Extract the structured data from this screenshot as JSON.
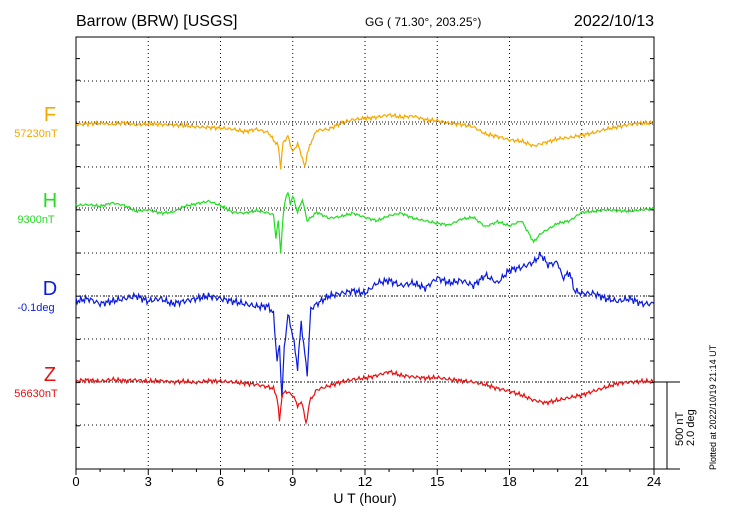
{
  "header": {
    "station": "Barrow (BRW)  [USGS]",
    "coords": "GG ( 71.30°, 203.25°)",
    "date": "2022/10/13"
  },
  "footer": {
    "plotted_at": "Plotted at 2022/10/19 21:14 UT"
  },
  "scale_bar": {
    "line1": "500 nT",
    "line2": "2.0 deg"
  },
  "chart_data": {
    "type": "line",
    "xlabel": "U T (hour)",
    "ylabel": "",
    "xlim": [
      0,
      24
    ],
    "xticks": [
      "0",
      "3",
      "6",
      "9",
      "12",
      "15",
      "18",
      "21",
      "24"
    ],
    "grid": true,
    "series": [
      {
        "name": "F",
        "baseline_label": "57230nT",
        "color": "#f5a800",
        "x": [
          0,
          0.5,
          1,
          1.5,
          2,
          2.5,
          3,
          3.5,
          4,
          4.5,
          5,
          5.5,
          6,
          6.5,
          7,
          7.5,
          8,
          8.2,
          8.4,
          8.5,
          8.6,
          8.8,
          9,
          9.2,
          9.4,
          9.5,
          9.6,
          9.8,
          10,
          10.5,
          11,
          11.5,
          12,
          12.5,
          13,
          13.5,
          14,
          14.5,
          15,
          15.5,
          16,
          16.5,
          17,
          17.5,
          18,
          18.5,
          19,
          19.5,
          20,
          20.5,
          21,
          21.5,
          22,
          22.5,
          23,
          23.5,
          24
        ],
        "y": [
          -20,
          -15,
          -10,
          -20,
          -5,
          -25,
          -15,
          -20,
          -25,
          -30,
          -40,
          -45,
          -50,
          -60,
          -80,
          -60,
          -90,
          -150,
          -200,
          -380,
          -170,
          -120,
          -250,
          -180,
          -300,
          -380,
          -260,
          -150,
          -70,
          -60,
          -10,
          20,
          30,
          40,
          60,
          40,
          50,
          20,
          10,
          -10,
          -20,
          -40,
          -100,
          -120,
          -150,
          -160,
          -200,
          -170,
          -140,
          -130,
          -110,
          -90,
          -60,
          -40,
          -20,
          -10,
          -10
        ]
      },
      {
        "name": "H",
        "baseline_label": "9300nT",
        "color": "#22dd22",
        "x": [
          0,
          0.5,
          1,
          1.5,
          2,
          2.5,
          3,
          3.5,
          4,
          4.5,
          5,
          5.5,
          6,
          6.5,
          7,
          7.5,
          8,
          8.2,
          8.3,
          8.4,
          8.5,
          8.6,
          8.7,
          8.8,
          8.9,
          9,
          9.2,
          9.4,
          9.6,
          9.8,
          10,
          10.5,
          11,
          11.5,
          12,
          12.5,
          13,
          13.5,
          14,
          14.5,
          15,
          15.5,
          16,
          16.5,
          17,
          17.5,
          18,
          18.5,
          19,
          19.3,
          19.6,
          20,
          20.5,
          21,
          21.5,
          22,
          22.5,
          23,
          23.5,
          24
        ],
        "y": [
          30,
          40,
          20,
          60,
          30,
          -40,
          -20,
          -60,
          -50,
          20,
          50,
          80,
          30,
          -50,
          -60,
          -30,
          -60,
          -80,
          -350,
          -150,
          -520,
          -100,
          120,
          180,
          50,
          140,
          -50,
          100,
          -150,
          -100,
          -50,
          -120,
          -100,
          -60,
          -110,
          -150,
          -90,
          -60,
          -120,
          -150,
          -180,
          -200,
          -130,
          -110,
          -220,
          -160,
          -210,
          -150,
          -400,
          -300,
          -250,
          -180,
          -150,
          -50,
          -40,
          -20,
          -30,
          -40,
          -20,
          -10
        ]
      },
      {
        "name": "D",
        "baseline_label": "-0.1deg",
        "color": "#0a1adf",
        "x": [
          0,
          0.5,
          1,
          1.5,
          2,
          2.5,
          3,
          3.5,
          4,
          4.5,
          5,
          5.5,
          6,
          6.5,
          7,
          7.5,
          8,
          8.2,
          8.35,
          8.45,
          8.55,
          8.65,
          8.8,
          9,
          9.2,
          9.35,
          9.5,
          9.6,
          9.75,
          10,
          10.5,
          11,
          11.5,
          12,
          12.5,
          13,
          13.5,
          14,
          14.5,
          15,
          15.5,
          16,
          16.5,
          17,
          17.5,
          18,
          18.5,
          19,
          19.3,
          19.6,
          20,
          20.2,
          20.5,
          20.7,
          21,
          21.5,
          22,
          22.5,
          23,
          23.5,
          24
        ],
        "y": [
          -0.04,
          -0.02,
          -0.06,
          -0.04,
          -0.02,
          0.0,
          -0.04,
          -0.02,
          -0.06,
          -0.04,
          -0.02,
          0.0,
          -0.02,
          -0.04,
          -0.06,
          -0.08,
          -0.08,
          -0.14,
          -0.5,
          -0.38,
          -0.78,
          -0.4,
          -0.14,
          -0.3,
          -0.55,
          -0.2,
          -0.45,
          -0.6,
          -0.1,
          -0.06,
          0.0,
          0.02,
          0.04,
          0.02,
          0.1,
          0.12,
          0.08,
          0.1,
          0.06,
          0.14,
          0.1,
          0.12,
          0.08,
          0.16,
          0.1,
          0.2,
          0.22,
          0.26,
          0.32,
          0.24,
          0.26,
          0.14,
          0.18,
          0.04,
          0.02,
          0.02,
          -0.02,
          -0.04,
          -0.02,
          -0.06,
          -0.06
        ]
      },
      {
        "name": "Z",
        "baseline_label": "56630nT",
        "color": "#e61010",
        "x": [
          0,
          0.5,
          1,
          1.5,
          2,
          2.5,
          3,
          3.5,
          4,
          4.5,
          5,
          5.5,
          6,
          6.5,
          7,
          7.5,
          8,
          8.2,
          8.35,
          8.45,
          8.55,
          8.7,
          9,
          9.2,
          9.4,
          9.55,
          9.7,
          10,
          10.5,
          11,
          11.5,
          12,
          12.5,
          13,
          13.5,
          14,
          14.5,
          15,
          15.5,
          16,
          16.5,
          17,
          17.5,
          18,
          18.5,
          19,
          19.5,
          20,
          20.5,
          21,
          21.5,
          22,
          22.5,
          23,
          23.5,
          24
        ],
        "y": [
          10,
          15,
          5,
          20,
          10,
          15,
          5,
          10,
          0,
          5,
          -5,
          10,
          5,
          0,
          -10,
          -20,
          -40,
          -50,
          -120,
          -300,
          -110,
          -70,
          -100,
          -180,
          -160,
          -330,
          -150,
          -60,
          -30,
          0,
          20,
          30,
          50,
          80,
          50,
          40,
          30,
          35,
          20,
          10,
          0,
          -20,
          -50,
          -70,
          -100,
          -140,
          -160,
          -140,
          -120,
          -100,
          -70,
          -40,
          -10,
          0,
          5,
          5
        ]
      }
    ]
  }
}
